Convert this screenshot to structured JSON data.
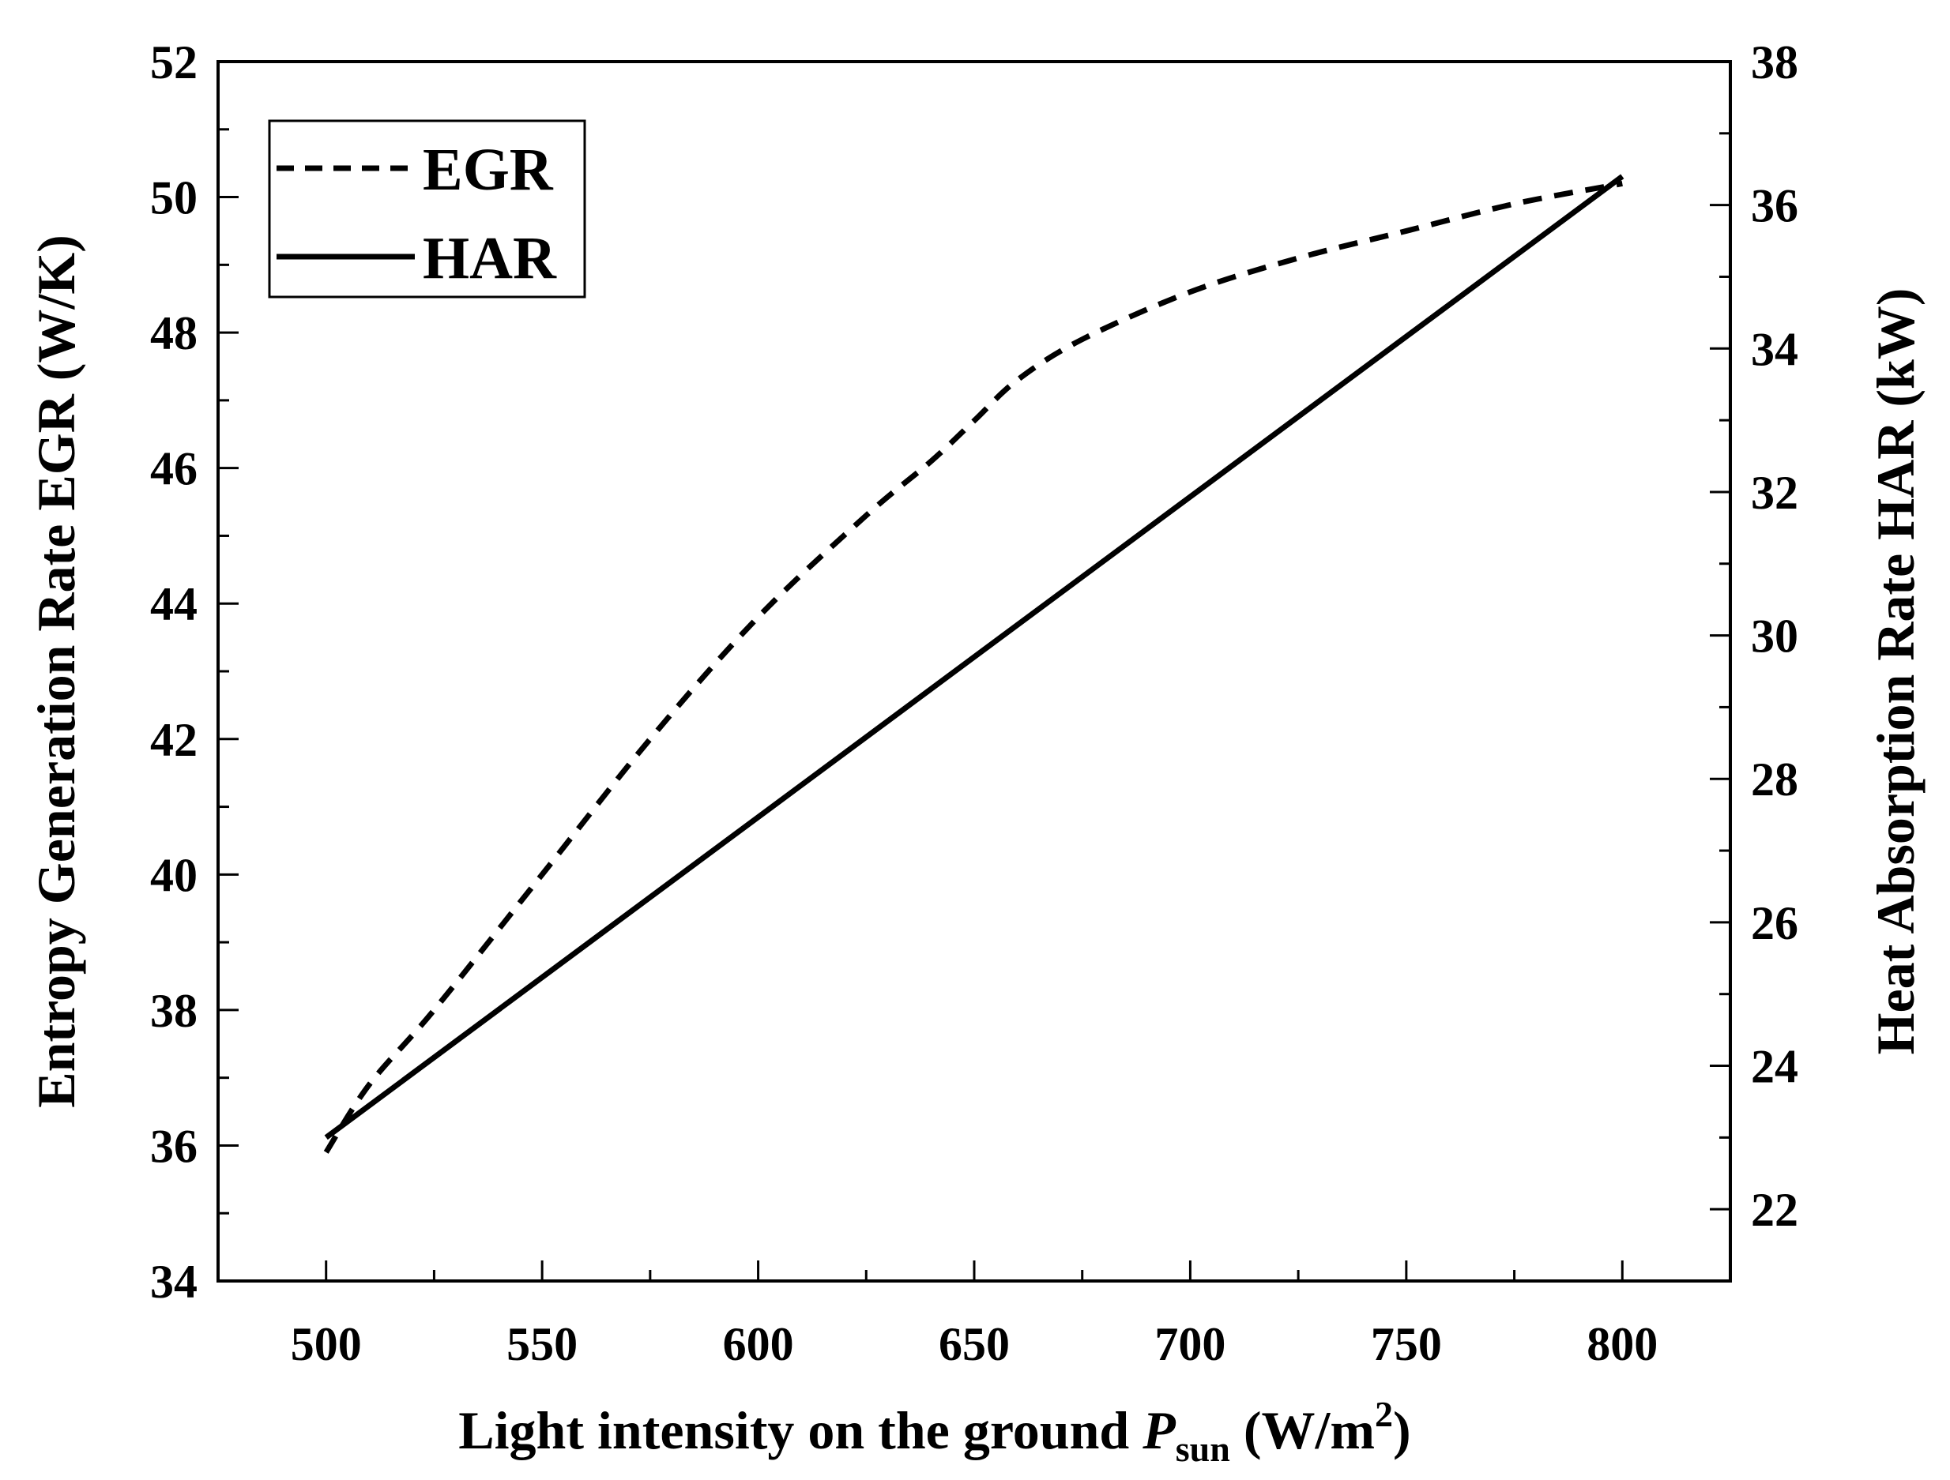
{
  "chart_data": {
    "type": "line",
    "title": "",
    "xlabel": {
      "main": "Light intensity on the ground ",
      "var": "P",
      "sub": "sun",
      "unit_open": " (W/m",
      "sup": "2",
      "unit_close": ")"
    },
    "ylabel_left": "Entropy Generation Rate EGR (W/K)",
    "ylabel_right": "Heat Absorption Rate HAR (kW)",
    "xlim": [
      475,
      825
    ],
    "ylim_left": [
      34,
      52
    ],
    "ylim_right": [
      21,
      38
    ],
    "x_ticks": [
      "500",
      "550",
      "600",
      "650",
      "700",
      "750",
      "800"
    ],
    "y_left_ticks": [
      "34",
      "36",
      "38",
      "40",
      "42",
      "44",
      "46",
      "48",
      "50",
      "52"
    ],
    "y_right_ticks": [
      "22",
      "24",
      "26",
      "28",
      "30",
      "32",
      "34",
      "36",
      "38"
    ],
    "legend_position": "top-left",
    "series": [
      {
        "name": "EGR",
        "axis": "left",
        "style": "dashed",
        "x": [
          500,
          510,
          525,
          550,
          575,
          600,
          625,
          640,
          650,
          660,
          675,
          700,
          725,
          750,
          775,
          800
        ],
        "y": [
          35.9,
          36.9,
          38.0,
          40.0,
          42.0,
          43.8,
          45.3,
          46.1,
          46.7,
          47.3,
          47.9,
          48.6,
          49.1,
          49.5,
          49.9,
          50.2
        ]
      },
      {
        "name": "HAR",
        "axis": "right",
        "style": "solid",
        "x": [
          500,
          800
        ],
        "y": [
          23.0,
          36.4
        ]
      }
    ]
  }
}
